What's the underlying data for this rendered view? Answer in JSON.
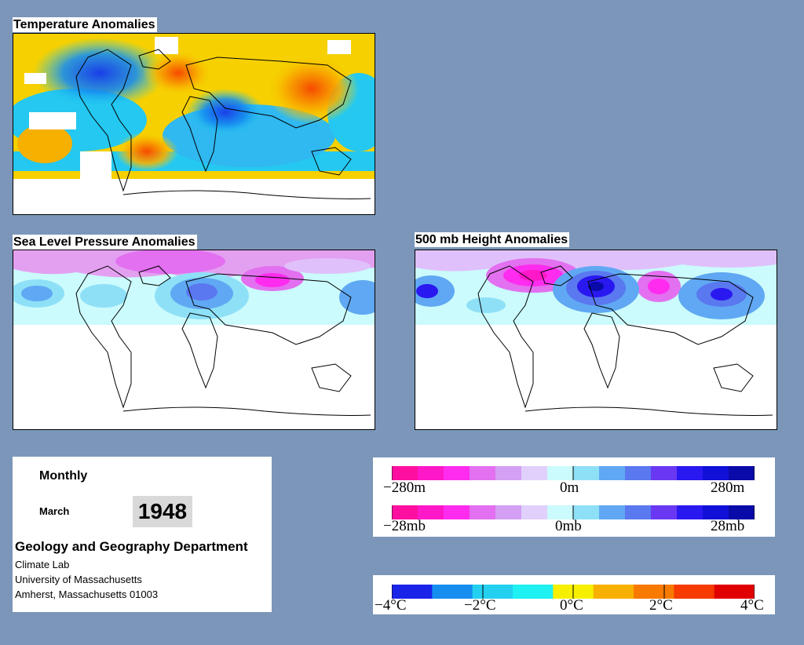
{
  "maps": {
    "temperature": {
      "title": "Temperature Anomalies"
    },
    "slp": {
      "title": "Sea Level Pressure Anomalies"
    },
    "height500": {
      "title": "500 mb Height Anomalies"
    }
  },
  "info": {
    "period": "Monthly",
    "month": "March",
    "year": "1948",
    "department": "Geology and Geography Department",
    "lab": "Climate Lab",
    "university": "University of Massachusetts",
    "address": "Amherst, Massachusetts 01003"
  },
  "legends": {
    "height": {
      "min": "−280m",
      "mid": "0m",
      "max": "280m"
    },
    "pressure": {
      "min": "−28mb",
      "mid": "0mb",
      "max": "28mb"
    },
    "temperature": {
      "labels": [
        "−4°C",
        "−2°C",
        "0°C",
        "2°C",
        "4°C"
      ]
    }
  },
  "colors": {
    "background": "#7b96b9",
    "anomaly_scale": [
      "#ff0fa0",
      "#ff18c8",
      "#ff2cef",
      "#e270f0",
      "#d3a0f3",
      "#e0d0fb",
      "#cbfbfc",
      "#8ee0f7",
      "#60a8f3",
      "#5a78ef",
      "#6a38f2",
      "#2a18f0",
      "#1010d8",
      "#0a0aa8"
    ],
    "temperature_scale": [
      "#1a24e8",
      "#168ef0",
      "#24d0f0",
      "#1ff0f2",
      "#f6f000",
      "#f8b000",
      "#f87a00",
      "#f63a00",
      "#e00000"
    ]
  }
}
